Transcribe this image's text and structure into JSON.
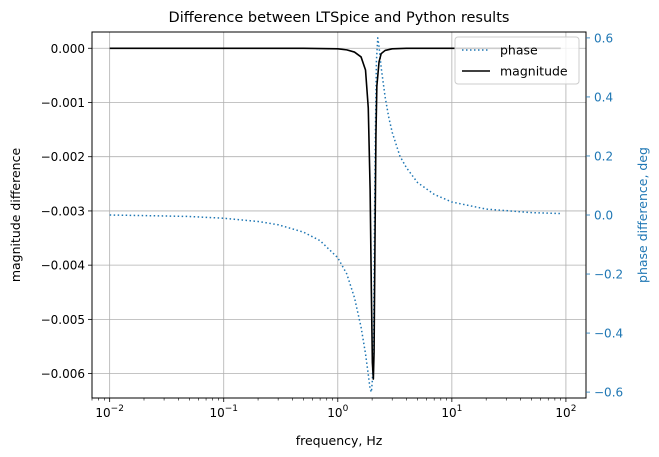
{
  "chart_data": {
    "type": "line",
    "title": "Difference between LTSpice and Python results",
    "xlabel": "frequency, Hz",
    "ylabel_left": "magnitude difference",
    "ylabel_right": "phase difference, deg",
    "x_scale": "log",
    "xlim": [
      0.007,
      150
    ],
    "ylim_left": [
      -0.00645,
      0.0003
    ],
    "ylim_right": [
      -0.62,
      0.62
    ],
    "grid": true,
    "legend_position": "top-right",
    "x_ticks": [
      {
        "value": 0.01,
        "base": "10",
        "exp": "−2"
      },
      {
        "value": 0.1,
        "base": "10",
        "exp": "−1"
      },
      {
        "value": 1,
        "base": "10",
        "exp": "0"
      },
      {
        "value": 10,
        "base": "10",
        "exp": "1"
      },
      {
        "value": 100,
        "base": "10",
        "exp": "2"
      }
    ],
    "y_left_ticks": [
      {
        "value": 0.0,
        "label": "0.000"
      },
      {
        "value": -0.001,
        "label": "−0.001"
      },
      {
        "value": -0.002,
        "label": "−0.002"
      },
      {
        "value": -0.003,
        "label": "−0.003"
      },
      {
        "value": -0.004,
        "label": "−0.004"
      },
      {
        "value": -0.005,
        "label": "−0.005"
      },
      {
        "value": -0.006,
        "label": "−0.006"
      }
    ],
    "y_right_ticks": [
      {
        "value": 0.6,
        "label": "0.6"
      },
      {
        "value": 0.4,
        "label": "0.4"
      },
      {
        "value": 0.2,
        "label": "0.2"
      },
      {
        "value": 0.0,
        "label": "0.0"
      },
      {
        "value": -0.2,
        "label": "−0.2"
      },
      {
        "value": -0.4,
        "label": "−0.4"
      },
      {
        "value": -0.6,
        "label": "−0.6"
      }
    ],
    "colors": {
      "magnitude": "#000000",
      "phase": "#1f77b4",
      "right_axis": "#1f77b4",
      "grid": "#b0b0b0"
    },
    "series": [
      {
        "name": "phase",
        "axis": "right",
        "style": "dotted",
        "x": [
          0.01,
          0.02,
          0.05,
          0.1,
          0.2,
          0.3,
          0.5,
          0.7,
          1.0,
          1.2,
          1.4,
          1.6,
          1.75,
          1.85,
          1.92,
          1.97,
          2.01,
          2.06,
          2.1,
          2.14,
          2.18,
          2.24,
          2.3,
          2.4,
          2.6,
          2.8,
          3.0,
          3.5,
          4.0,
          5.0,
          7.0,
          10,
          20,
          50,
          90
        ],
        "values": [
          0.0,
          -0.002,
          -0.005,
          -0.011,
          -0.022,
          -0.033,
          -0.058,
          -0.087,
          -0.145,
          -0.2,
          -0.28,
          -0.38,
          -0.47,
          -0.54,
          -0.59,
          -0.6,
          -0.56,
          -0.4,
          0.0,
          0.3,
          0.52,
          0.6,
          0.57,
          0.5,
          0.4,
          0.33,
          0.28,
          0.2,
          0.16,
          0.11,
          0.07,
          0.044,
          0.02,
          0.008,
          0.005
        ]
      },
      {
        "name": "magnitude",
        "axis": "left",
        "style": "solid",
        "x": [
          0.01,
          0.1,
          0.5,
          1.0,
          1.2,
          1.4,
          1.6,
          1.75,
          1.85,
          1.92,
          1.97,
          2.01,
          2.05,
          2.08,
          2.12,
          2.16,
          2.2,
          2.3,
          2.4,
          2.6,
          3.0,
          4.0,
          10,
          90
        ],
        "values": [
          0.0,
          0.0,
          0.0,
          -1e-05,
          -3e-05,
          -7e-05,
          -0.00016,
          -0.0004,
          -0.0011,
          -0.0026,
          -0.0045,
          -0.0058,
          -0.0061,
          -0.0056,
          -0.0035,
          -0.0016,
          -0.0007,
          -0.00025,
          -0.0001,
          -4e-05,
          -1e-05,
          0.0,
          0.0,
          0.0
        ]
      }
    ]
  }
}
